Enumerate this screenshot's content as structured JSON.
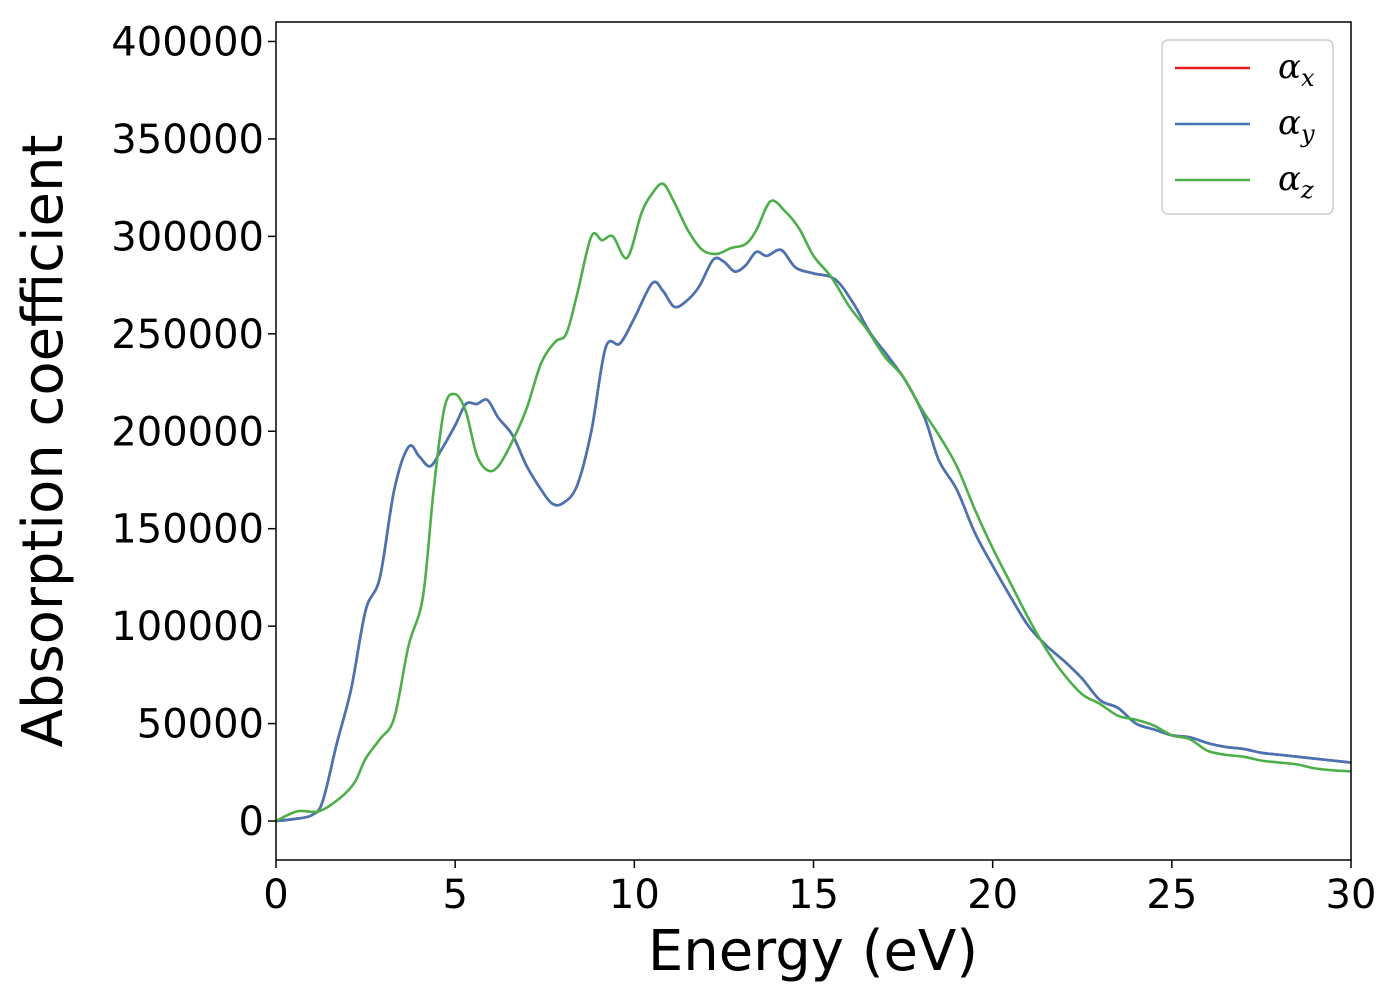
{
  "chart_data": {
    "type": "line",
    "title": "",
    "xlabel": "Energy (eV)",
    "ylabel": "Absorption coefficient",
    "xlim": [
      0,
      30
    ],
    "ylim": [
      -20000,
      410000
    ],
    "x_ticks": [
      "0",
      "5",
      "10",
      "15",
      "20",
      "25",
      "30"
    ],
    "y_ticks": [
      "0",
      "50000",
      "100000",
      "150000",
      "200000",
      "250000",
      "300000",
      "350000",
      "400000"
    ],
    "grid": false,
    "legend_position": "top-right",
    "series": [
      {
        "name": "α",
        "subscript": "x",
        "color": "#e41a1c",
        "points": [
          [
            0,
            0
          ],
          [
            0.5,
            1000
          ],
          [
            1,
            3000
          ],
          [
            1.3,
            10000
          ],
          [
            1.7,
            40000
          ],
          [
            2.1,
            68000
          ],
          [
            2.5,
            108000
          ],
          [
            2.9,
            125000
          ],
          [
            3.3,
            170000
          ],
          [
            3.7,
            192000
          ],
          [
            4.0,
            187000
          ],
          [
            4.3,
            182000
          ],
          [
            4.6,
            190000
          ],
          [
            5.0,
            203000
          ],
          [
            5.3,
            214000
          ],
          [
            5.6,
            214000
          ],
          [
            5.9,
            216000
          ],
          [
            6.2,
            207000
          ],
          [
            6.6,
            198000
          ],
          [
            7.0,
            182000
          ],
          [
            7.4,
            170000
          ],
          [
            7.7,
            163000
          ],
          [
            8.0,
            163000
          ],
          [
            8.4,
            172000
          ],
          [
            8.8,
            200000
          ],
          [
            9.2,
            243000
          ],
          [
            9.6,
            245000
          ],
          [
            10.0,
            258000
          ],
          [
            10.5,
            276000
          ],
          [
            10.8,
            272000
          ],
          [
            11.1,
            264000
          ],
          [
            11.4,
            266000
          ],
          [
            11.8,
            274000
          ],
          [
            12.2,
            288000
          ],
          [
            12.5,
            287000
          ],
          [
            12.8,
            282000
          ],
          [
            13.1,
            285000
          ],
          [
            13.4,
            292000
          ],
          [
            13.7,
            290000
          ],
          [
            14.1,
            293000
          ],
          [
            14.5,
            284000
          ],
          [
            15.0,
            281000
          ],
          [
            15.6,
            278000
          ],
          [
            16.1,
            266000
          ],
          [
            16.6,
            250000
          ],
          [
            17.1,
            238000
          ],
          [
            17.6,
            225000
          ],
          [
            18.1,
            207000
          ],
          [
            18.5,
            185000
          ],
          [
            19.0,
            170000
          ],
          [
            19.5,
            148000
          ],
          [
            20.0,
            131000
          ],
          [
            20.5,
            115000
          ],
          [
            21.0,
            100000
          ],
          [
            21.5,
            90000
          ],
          [
            22.0,
            82000
          ],
          [
            22.5,
            73000
          ],
          [
            23.0,
            62000
          ],
          [
            23.5,
            58000
          ],
          [
            24.0,
            50000
          ],
          [
            24.5,
            47000
          ],
          [
            25.0,
            44000
          ],
          [
            25.5,
            43000
          ],
          [
            26.0,
            40000
          ],
          [
            26.5,
            38000
          ],
          [
            27.0,
            37000
          ],
          [
            27.5,
            35000
          ],
          [
            28.0,
            34000
          ],
          [
            28.5,
            33000
          ],
          [
            29.0,
            32000
          ],
          [
            29.5,
            31000
          ],
          [
            30.0,
            30000
          ]
        ]
      },
      {
        "name": "α",
        "subscript": "y",
        "color": "#4575b4",
        "points": [
          [
            0,
            0
          ],
          [
            0.5,
            1000
          ],
          [
            1,
            3000
          ],
          [
            1.3,
            10000
          ],
          [
            1.7,
            40000
          ],
          [
            2.1,
            68000
          ],
          [
            2.5,
            108000
          ],
          [
            2.9,
            125000
          ],
          [
            3.3,
            170000
          ],
          [
            3.7,
            192000
          ],
          [
            4.0,
            187000
          ],
          [
            4.3,
            182000
          ],
          [
            4.6,
            190000
          ],
          [
            5.0,
            203000
          ],
          [
            5.3,
            214000
          ],
          [
            5.6,
            214000
          ],
          [
            5.9,
            216000
          ],
          [
            6.2,
            207000
          ],
          [
            6.6,
            198000
          ],
          [
            7.0,
            182000
          ],
          [
            7.4,
            170000
          ],
          [
            7.7,
            163000
          ],
          [
            8.0,
            163000
          ],
          [
            8.4,
            172000
          ],
          [
            8.8,
            200000
          ],
          [
            9.2,
            243000
          ],
          [
            9.6,
            245000
          ],
          [
            10.0,
            258000
          ],
          [
            10.5,
            276000
          ],
          [
            10.8,
            272000
          ],
          [
            11.1,
            264000
          ],
          [
            11.4,
            266000
          ],
          [
            11.8,
            274000
          ],
          [
            12.2,
            288000
          ],
          [
            12.5,
            287000
          ],
          [
            12.8,
            282000
          ],
          [
            13.1,
            285000
          ],
          [
            13.4,
            292000
          ],
          [
            13.7,
            290000
          ],
          [
            14.1,
            293000
          ],
          [
            14.5,
            284000
          ],
          [
            15.0,
            281000
          ],
          [
            15.6,
            278000
          ],
          [
            16.1,
            266000
          ],
          [
            16.6,
            250000
          ],
          [
            17.1,
            238000
          ],
          [
            17.6,
            225000
          ],
          [
            18.1,
            207000
          ],
          [
            18.5,
            185000
          ],
          [
            19.0,
            170000
          ],
          [
            19.5,
            148000
          ],
          [
            20.0,
            131000
          ],
          [
            20.5,
            115000
          ],
          [
            21.0,
            100000
          ],
          [
            21.5,
            90000
          ],
          [
            22.0,
            82000
          ],
          [
            22.5,
            73000
          ],
          [
            23.0,
            62000
          ],
          [
            23.5,
            58000
          ],
          [
            24.0,
            50000
          ],
          [
            24.5,
            47000
          ],
          [
            25.0,
            44000
          ],
          [
            25.5,
            43000
          ],
          [
            26.0,
            40000
          ],
          [
            26.5,
            38000
          ],
          [
            27.0,
            37000
          ],
          [
            27.5,
            35000
          ],
          [
            28.0,
            34000
          ],
          [
            28.5,
            33000
          ],
          [
            29.0,
            32000
          ],
          [
            29.5,
            31000
          ],
          [
            30.0,
            30000
          ]
        ]
      },
      {
        "name": "α",
        "subscript": "z",
        "color": "#4daf4a",
        "points": [
          [
            0,
            0
          ],
          [
            0.6,
            5000
          ],
          [
            1.2,
            5000
          ],
          [
            1.8,
            12000
          ],
          [
            2.2,
            20000
          ],
          [
            2.5,
            32000
          ],
          [
            2.9,
            42000
          ],
          [
            3.3,
            53000
          ],
          [
            3.7,
            90000
          ],
          [
            4.1,
            115000
          ],
          [
            4.4,
            170000
          ],
          [
            4.7,
            212000
          ],
          [
            5.0,
            219000
          ],
          [
            5.3,
            210000
          ],
          [
            5.6,
            188000
          ],
          [
            5.9,
            180000
          ],
          [
            6.2,
            182000
          ],
          [
            6.6,
            195000
          ],
          [
            7.0,
            212000
          ],
          [
            7.4,
            235000
          ],
          [
            7.8,
            246000
          ],
          [
            8.1,
            250000
          ],
          [
            8.4,
            270000
          ],
          [
            8.8,
            300000
          ],
          [
            9.1,
            298000
          ],
          [
            9.4,
            300000
          ],
          [
            9.8,
            289000
          ],
          [
            10.2,
            312000
          ],
          [
            10.5,
            322000
          ],
          [
            10.8,
            327000
          ],
          [
            11.1,
            318000
          ],
          [
            11.5,
            303000
          ],
          [
            11.9,
            293000
          ],
          [
            12.3,
            291000
          ],
          [
            12.7,
            294000
          ],
          [
            13.1,
            296000
          ],
          [
            13.4,
            303000
          ],
          [
            13.8,
            318000
          ],
          [
            14.2,
            313000
          ],
          [
            14.6,
            304000
          ],
          [
            15.0,
            290000
          ],
          [
            15.5,
            279000
          ],
          [
            16.0,
            264000
          ],
          [
            16.5,
            252000
          ],
          [
            17.0,
            238000
          ],
          [
            17.5,
            228000
          ],
          [
            18.0,
            212000
          ],
          [
            18.5,
            198000
          ],
          [
            19.0,
            182000
          ],
          [
            19.5,
            160000
          ],
          [
            20.0,
            140000
          ],
          [
            20.5,
            122000
          ],
          [
            21.0,
            104000
          ],
          [
            21.5,
            88000
          ],
          [
            22.0,
            75000
          ],
          [
            22.5,
            65000
          ],
          [
            23.0,
            60000
          ],
          [
            23.5,
            54000
          ],
          [
            24.0,
            52000
          ],
          [
            24.5,
            49000
          ],
          [
            25.0,
            44000
          ],
          [
            25.5,
            42000
          ],
          [
            26.0,
            36000
          ],
          [
            26.5,
            34000
          ],
          [
            27.0,
            33000
          ],
          [
            27.5,
            31000
          ],
          [
            28.0,
            30000
          ],
          [
            28.5,
            29000
          ],
          [
            29.0,
            27000
          ],
          [
            29.5,
            26000
          ],
          [
            30.0,
            25500
          ]
        ]
      }
    ]
  }
}
